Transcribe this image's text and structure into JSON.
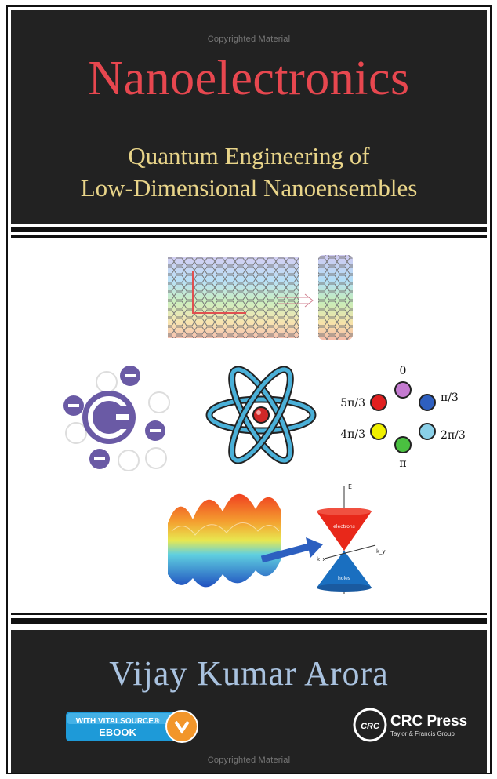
{
  "cover": {
    "watermark_top": "Copyrighted Material",
    "title": "Nanoelectronics",
    "subtitle_line1": "Quantum Engineering of",
    "subtitle_line2": "Low-Dimensional Nanoensembles",
    "author": "Vijay Kumar Arora",
    "watermark_bottom": "Copyrighted Material"
  },
  "badges": {
    "vitalsource_line1": "WITH VITALSOURCE®",
    "vitalsource_line2": "EBOOK",
    "publisher_logo": "CRC",
    "publisher_name": "CRC Press",
    "publisher_group": "Taylor & Francis Group"
  },
  "figure": {
    "phase_labels": [
      "0",
      "π/3",
      "2π/3",
      "π",
      "4π/3",
      "5π/3"
    ],
    "cone_labels": [
      "E",
      "electrons",
      "holes",
      "k_x",
      "k_y"
    ],
    "atom_letter": "C"
  },
  "colors": {
    "band": "#222222",
    "title": "#e7474f",
    "subtitle": "#e8d489",
    "author": "#a9c2df",
    "carbon_purple": "#6a5aa5"
  }
}
